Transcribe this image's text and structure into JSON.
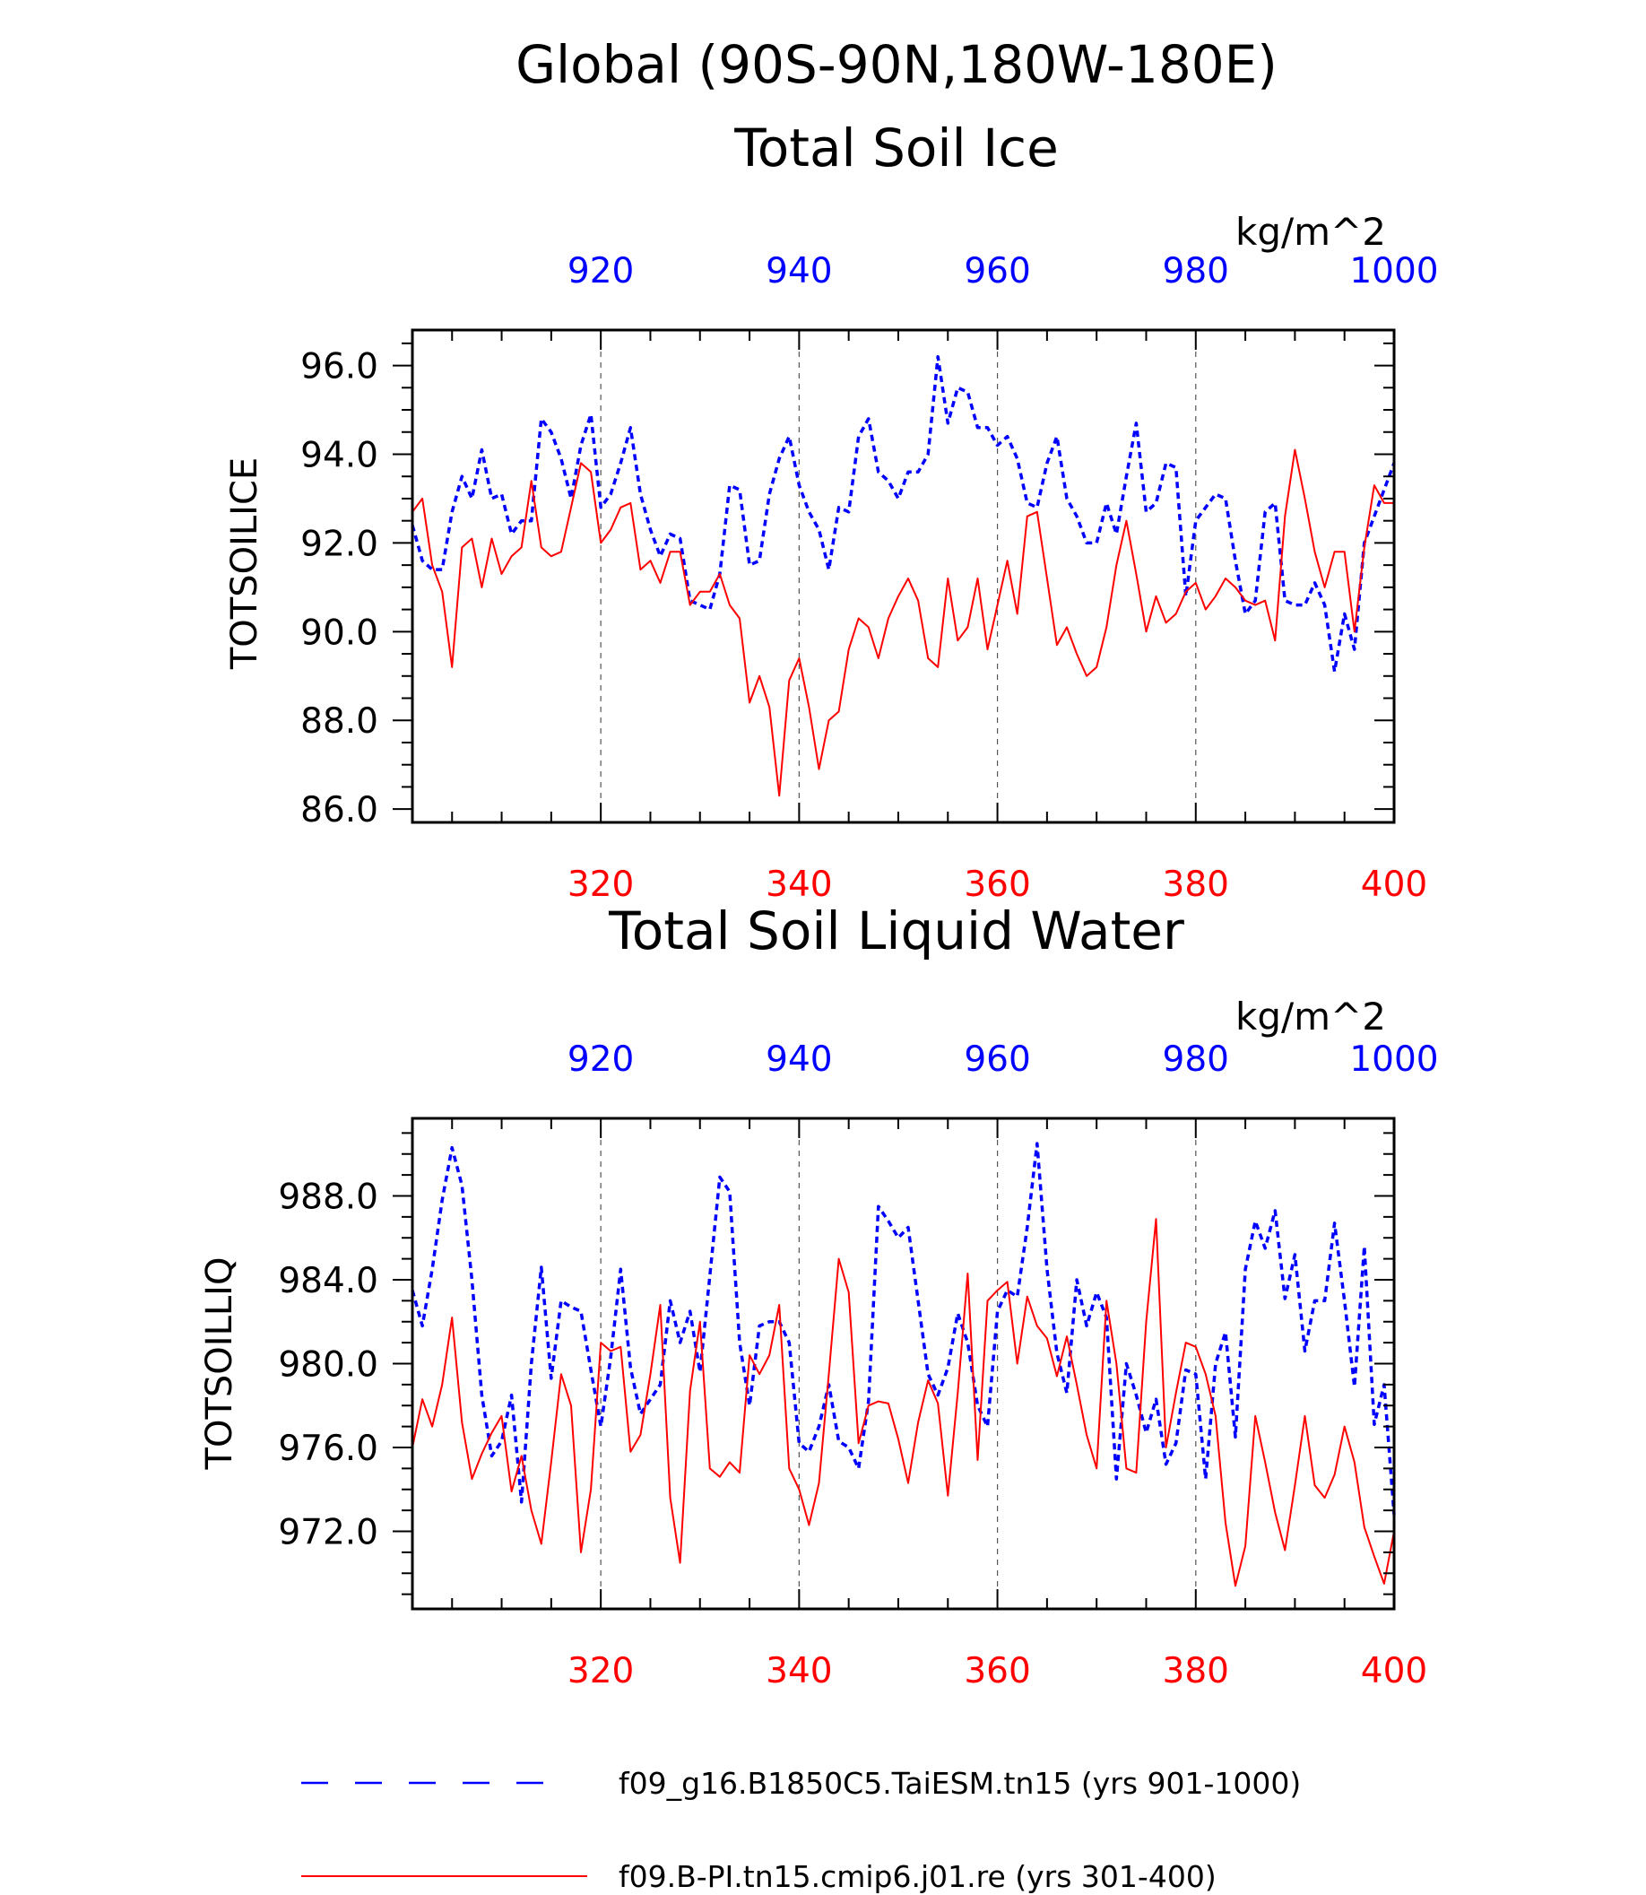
{
  "figure": {
    "title_line1": "Global (90S-90N,180W-180E)",
    "colors": {
      "blue_series": "#0000ff",
      "red_series": "#ff0000",
      "axis": "#000000",
      "grid": "#555555"
    }
  },
  "chart_data": [
    {
      "type": "line",
      "title": "Total Soil Ice",
      "units": "kg/m^2",
      "ylabel": "TOTSOILICE",
      "ylim": [
        85.7,
        96.8
      ],
      "yticks": [
        86.0,
        88.0,
        90.0,
        92.0,
        94.0,
        96.0
      ],
      "ytick_labels": [
        "86.0",
        "88.0",
        "90.0",
        "92.0",
        "94.0",
        "96.0"
      ],
      "x_bottom": {
        "range": [
          301,
          400
        ],
        "ticks": [
          320,
          340,
          360,
          380,
          400
        ],
        "tick_labels": [
          "320",
          "340",
          "360",
          "380",
          "400"
        ],
        "color": "#ff0000"
      },
      "x_top": {
        "range": [
          901,
          1000
        ],
        "ticks": [
          920,
          940,
          960,
          980,
          1000
        ],
        "tick_labels": [
          "920",
          "940",
          "960",
          "980",
          "1000"
        ],
        "color": "#0000ff"
      },
      "grid": "vertical dashed at major ticks",
      "series": [
        {
          "name": "f09_g16.B1850C5.TaiESM.tn15 (yrs 901-1000)",
          "axis": "top",
          "style": "dashed",
          "color": "#0000ff",
          "values": [
            92.4,
            91.6,
            91.4,
            91.4,
            92.7,
            93.5,
            93.0,
            94.1,
            93.0,
            93.1,
            92.2,
            92.5,
            92.5,
            94.8,
            94.5,
            93.9,
            93.0,
            94.2,
            94.9,
            92.8,
            93.1,
            93.8,
            94.6,
            93.1,
            92.3,
            91.7,
            92.2,
            92.1,
            90.7,
            90.6,
            90.5,
            91.3,
            93.3,
            93.2,
            91.5,
            91.6,
            93.1,
            93.9,
            94.4,
            93.3,
            92.7,
            92.3,
            91.4,
            92.8,
            92.7,
            94.4,
            94.8,
            93.6,
            93.4,
            93.0,
            93.6,
            93.6,
            94.0,
            96.2,
            94.7,
            95.5,
            95.4,
            94.6,
            94.6,
            94.2,
            94.4,
            93.9,
            92.9,
            92.8,
            93.8,
            94.4,
            93.0,
            92.6,
            92.0,
            92.0,
            92.9,
            92.2,
            93.5,
            94.7,
            92.7,
            92.9,
            93.8,
            93.7,
            90.8,
            92.5,
            92.8,
            93.1,
            93.0,
            91.6,
            90.4,
            90.7,
            92.7,
            92.9,
            90.7,
            90.6,
            90.6,
            91.1,
            90.6,
            89.1,
            90.4,
            89.6,
            92.0,
            92.6,
            93.2,
            93.8
          ]
        },
        {
          "name": "f09.B-PI.tn15.cmip6.j01.re (yrs 301-400)",
          "axis": "bottom",
          "style": "solid",
          "color": "#ff0000",
          "values": [
            92.7,
            93.0,
            91.5,
            90.9,
            89.2,
            91.9,
            92.1,
            91.0,
            92.1,
            91.3,
            91.7,
            91.9,
            93.4,
            91.9,
            91.7,
            91.8,
            92.8,
            93.8,
            93.6,
            92.0,
            92.3,
            92.8,
            92.9,
            91.4,
            91.6,
            91.1,
            91.8,
            91.8,
            90.6,
            90.9,
            90.9,
            91.3,
            90.6,
            90.3,
            88.4,
            89.0,
            88.3,
            86.3,
            88.9,
            89.4,
            88.3,
            86.9,
            88.0,
            88.2,
            89.6,
            90.3,
            90.1,
            89.4,
            90.3,
            90.8,
            91.2,
            90.7,
            89.4,
            89.2,
            91.2,
            89.8,
            90.1,
            91.2,
            89.6,
            90.6,
            91.6,
            90.4,
            92.6,
            92.7,
            91.2,
            89.7,
            90.1,
            89.5,
            89.0,
            89.2,
            90.1,
            91.5,
            92.5,
            91.3,
            90.0,
            90.8,
            90.2,
            90.4,
            90.9,
            91.1,
            90.5,
            90.8,
            91.2,
            91.0,
            90.7,
            90.6,
            90.7,
            89.8,
            92.6,
            94.1,
            93.0,
            91.8,
            91.0,
            91.8,
            91.8,
            90.0,
            91.9,
            93.3,
            92.9,
            92.9
          ]
        }
      ]
    },
    {
      "type": "line",
      "title": "Total Soil Liquid Water",
      "units": "kg/m^2",
      "ylabel": "TOTSOILLIQ",
      "ylim": [
        968.3,
        991.7
      ],
      "yticks": [
        972.0,
        976.0,
        980.0,
        984.0,
        988.0
      ],
      "ytick_labels": [
        "972.0",
        "976.0",
        "980.0",
        "984.0",
        "988.0"
      ],
      "x_bottom": {
        "range": [
          301,
          400
        ],
        "ticks": [
          320,
          340,
          360,
          380,
          400
        ],
        "tick_labels": [
          "320",
          "340",
          "360",
          "380",
          "400"
        ],
        "color": "#ff0000"
      },
      "x_top": {
        "range": [
          901,
          1000
        ],
        "ticks": [
          920,
          940,
          960,
          980,
          1000
        ],
        "tick_labels": [
          "920",
          "940",
          "960",
          "980",
          "1000"
        ],
        "color": "#0000ff"
      },
      "grid": "vertical dashed at major ticks",
      "series": [
        {
          "name": "f09_g16.B1850C5.TaiESM.tn15 (yrs 901-1000)",
          "axis": "top",
          "style": "dashed",
          "color": "#0000ff",
          "values": [
            983.5,
            981.8,
            984.5,
            987.8,
            990.3,
            988.5,
            984.0,
            978.5,
            975.6,
            976.3,
            978.5,
            973.4,
            980.0,
            984.6,
            979.3,
            983.0,
            982.7,
            982.5,
            979.7,
            977.0,
            980.3,
            984.5,
            979.8,
            977.6,
            978.3,
            979.0,
            983.0,
            981.0,
            982.5,
            979.6,
            984.2,
            988.9,
            988.2,
            981.0,
            978.0,
            981.8,
            982.0,
            982.0,
            981.0,
            976.2,
            975.8,
            977.0,
            979.0,
            976.3,
            976.0,
            975.0,
            978.2,
            987.5,
            986.8,
            986.0,
            986.5,
            983.0,
            979.5,
            978.5,
            979.8,
            982.4,
            981.0,
            978.0,
            977.0,
            982.5,
            983.5,
            983.2,
            986.5,
            990.5,
            984.5,
            980.5,
            978.6,
            984.0,
            981.8,
            983.4,
            982.2,
            974.5,
            980.0,
            978.5,
            976.7,
            978.3,
            975.2,
            976.2,
            979.7,
            979.5,
            974.5,
            980.0,
            981.5,
            976.5,
            984.5,
            986.8,
            985.5,
            987.3,
            983.1,
            985.2,
            980.6,
            983.0,
            983.0,
            986.7,
            983.0,
            978.9,
            985.6,
            977.1,
            979.0,
            972.8
          ]
        },
        {
          "name": "f09.B-PI.tn15.cmip6.j01.re (yrs 301-400)",
          "axis": "bottom",
          "style": "solid",
          "color": "#ff0000",
          "values": [
            976.0,
            978.3,
            977.0,
            979.0,
            982.2,
            977.2,
            974.5,
            975.7,
            976.7,
            977.5,
            973.9,
            975.6,
            973.0,
            971.4,
            975.3,
            979.5,
            978.0,
            971.0,
            974.0,
            981.0,
            980.6,
            980.8,
            975.8,
            976.6,
            979.5,
            982.8,
            973.6,
            970.5,
            978.7,
            982.0,
            975.0,
            974.6,
            975.3,
            974.8,
            980.4,
            979.5,
            980.4,
            982.8,
            975.0,
            974.0,
            972.3,
            974.3,
            979.5,
            985.0,
            983.4,
            976.2,
            978.0,
            978.2,
            978.1,
            976.4,
            974.3,
            977.2,
            979.2,
            978.1,
            973.7,
            978.6,
            984.3,
            975.4,
            983.0,
            983.5,
            983.9,
            980.0,
            983.2,
            981.8,
            981.2,
            979.4,
            981.3,
            979.0,
            976.6,
            975.0,
            983.0,
            980.0,
            975.0,
            974.8,
            982.0,
            986.9,
            976.0,
            978.6,
            981.0,
            980.8,
            979.5,
            977.5,
            972.4,
            969.4,
            971.3,
            977.5,
            975.3,
            972.9,
            971.1,
            974.2,
            977.5,
            974.2,
            973.6,
            974.7,
            977.0,
            975.3,
            972.2,
            970.8,
            969.5,
            972.0
          ]
        }
      ]
    }
  ],
  "legend": {
    "entries": [
      {
        "label": "f09_g16.B1850C5.TaiESM.tn15 (yrs 901-1000)",
        "color": "#0000ff",
        "style": "dashed"
      },
      {
        "label": "f09.B-PI.tn15.cmip6.j01.re (yrs 301-400)",
        "color": "#ff0000",
        "style": "solid"
      }
    ],
    "placement": "bottom"
  }
}
